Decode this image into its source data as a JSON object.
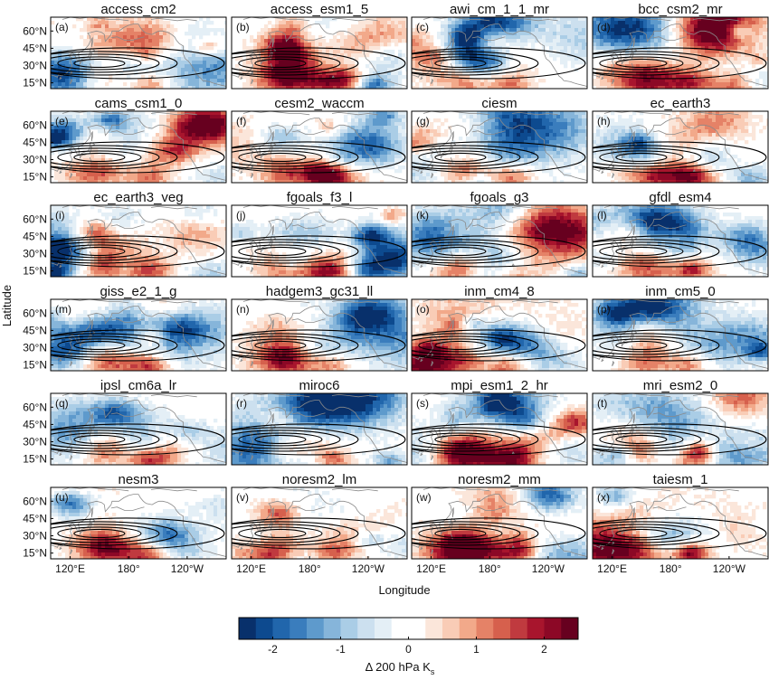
{
  "figure": {
    "ylabel": "Latitude",
    "xlabel": "Longitude",
    "colorbar_label_main": "Δ 200 hPa K",
    "colorbar_label_sub": "s"
  },
  "chart_data": {
    "type": "heatmap",
    "layout": {
      "rows": 6,
      "cols": 4
    },
    "lat_ticks": [
      "60°N",
      "45°N",
      "30°N",
      "15°N"
    ],
    "lon_ticks": [
      "120°E",
      "180°",
      "120°W"
    ],
    "lat_tick_values": [
      60,
      45,
      30,
      15
    ],
    "lon_tick_values": [
      120,
      180,
      240
    ],
    "lat_range": [
      10,
      72
    ],
    "lon_range": [
      100,
      280
    ],
    "panels": [
      {
        "title": "access_cm2",
        "letter": "(a)"
      },
      {
        "title": "access_esm1_5",
        "letter": "(b)"
      },
      {
        "title": "awi_cm_1_1_mr",
        "letter": "(c)"
      },
      {
        "title": "bcc_csm2_mr",
        "letter": "(d)"
      },
      {
        "title": "cams_csm1_0",
        "letter": "(e)"
      },
      {
        "title": "cesm2_waccm",
        "letter": "(f)"
      },
      {
        "title": "ciesm",
        "letter": "(g)"
      },
      {
        "title": "ec_earth3",
        "letter": "(h)"
      },
      {
        "title": "ec_earth3_veg",
        "letter": "(i)"
      },
      {
        "title": "fgoals_f3_l",
        "letter": "(j)"
      },
      {
        "title": "fgoals_g3",
        "letter": "(k)"
      },
      {
        "title": "gfdl_esm4",
        "letter": "(l)"
      },
      {
        "title": "giss_e2_1_g",
        "letter": "(m)"
      },
      {
        "title": "hadgem3_gc31_ll",
        "letter": "(n)"
      },
      {
        "title": "inm_cm4_8",
        "letter": "(o)"
      },
      {
        "title": "inm_cm5_0",
        "letter": "(p)"
      },
      {
        "title": "ipsl_cm6a_lr",
        "letter": "(q)"
      },
      {
        "title": "miroc6",
        "letter": "(r)"
      },
      {
        "title": "mpi_esm1_2_hr",
        "letter": "(s)"
      },
      {
        "title": "mri_esm2_0",
        "letter": "(t)"
      },
      {
        "title": "nesm3",
        "letter": "(u)"
      },
      {
        "title": "noresm2_lm",
        "letter": "(v)"
      },
      {
        "title": "noresm2_mm",
        "letter": "(w)"
      },
      {
        "title": "taiesm_1",
        "letter": "(x)"
      }
    ],
    "colorbar": {
      "ticks": [
        "-2",
        "-1",
        "0",
        "1",
        "2"
      ],
      "tick_values": [
        -2,
        -1,
        0,
        1,
        2
      ],
      "range": [
        -2.5,
        2.5
      ],
      "colors": [
        "#08306b",
        "#0d4a8f",
        "#2166ac",
        "#3a7dbd",
        "#5e9acc",
        "#86b5da",
        "#aacde6",
        "#cce0ef",
        "#e4eff6",
        "#ffffff",
        "#ffffff",
        "#fbe6da",
        "#f9ccb6",
        "#f2a98a",
        "#e58267",
        "#d6604d",
        "#c03a3f",
        "#a8152d",
        "#8c0826",
        "#67001f"
      ]
    }
  }
}
